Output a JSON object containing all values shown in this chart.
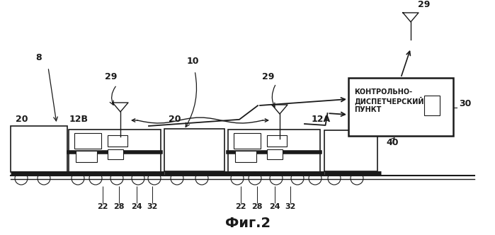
{
  "title": "Фиг.2",
  "bg_color": "#ffffff",
  "box_text": "КОНТРОЛЬНО-\nДИСПЕТЧЕРСКИЙ\nПУНКТ",
  "lc": "#1a1a1a",
  "lw": 1.0,
  "figsize": [
    6.99,
    3.32
  ],
  "dpi": 100
}
